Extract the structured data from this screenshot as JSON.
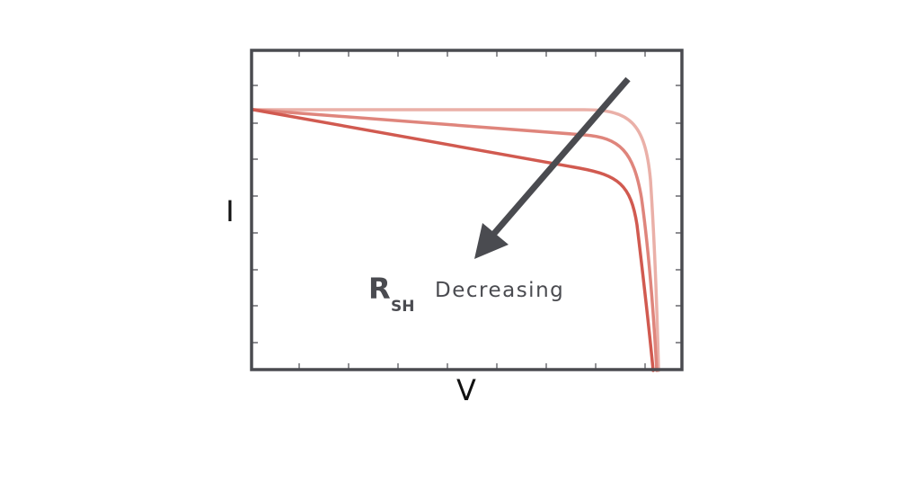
{
  "axes": {
    "x_label": "V",
    "y_label": "I"
  },
  "annotation": {
    "symbol": "R",
    "subscript": "SH",
    "text": "Decreasing"
  }
}
